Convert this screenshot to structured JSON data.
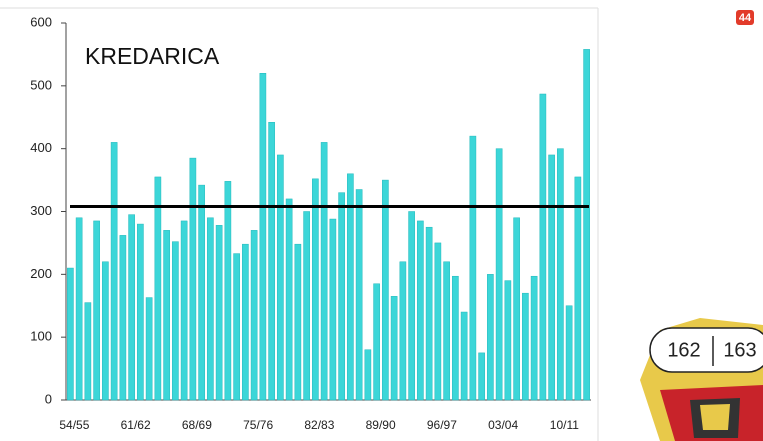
{
  "chart_data": {
    "type": "bar",
    "title": "KREDARICA",
    "categories": [
      "54/55",
      null,
      null,
      null,
      null,
      null,
      null,
      "61/62",
      null,
      null,
      null,
      null,
      null,
      null,
      "68/69",
      null,
      null,
      null,
      null,
      null,
      null,
      "75/76",
      null,
      null,
      null,
      null,
      null,
      null,
      "82/83",
      null,
      null,
      null,
      null,
      null,
      null,
      "89/90",
      null,
      null,
      null,
      null,
      null,
      null,
      "96/97",
      null,
      null,
      null,
      null,
      null,
      null,
      "03/04",
      null,
      null,
      null,
      null,
      null,
      null,
      "10/11",
      null,
      null,
      null
    ],
    "values": [
      210,
      290,
      155,
      285,
      220,
      410,
      262,
      295,
      280,
      163,
      355,
      270,
      252,
      285,
      385,
      342,
      290,
      278,
      348,
      233,
      248,
      270,
      520,
      442,
      390,
      320,
      248,
      300,
      352,
      410,
      288,
      330,
      360,
      335,
      80,
      185,
      350,
      165,
      220,
      300,
      285,
      275,
      250,
      220,
      197,
      140,
      420,
      75,
      200,
      400,
      190,
      290,
      170,
      197,
      487,
      390,
      400,
      150,
      355,
      558
    ],
    "color": "#3cd6d8",
    "reference_line": 308,
    "reference_color": "#000000",
    "ylim": [
      0,
      600
    ],
    "yticks": [
      0,
      100,
      200,
      300,
      400,
      500,
      600
    ]
  },
  "page": {
    "badge": "44",
    "page_numbers": [
      "162",
      "163"
    ]
  }
}
